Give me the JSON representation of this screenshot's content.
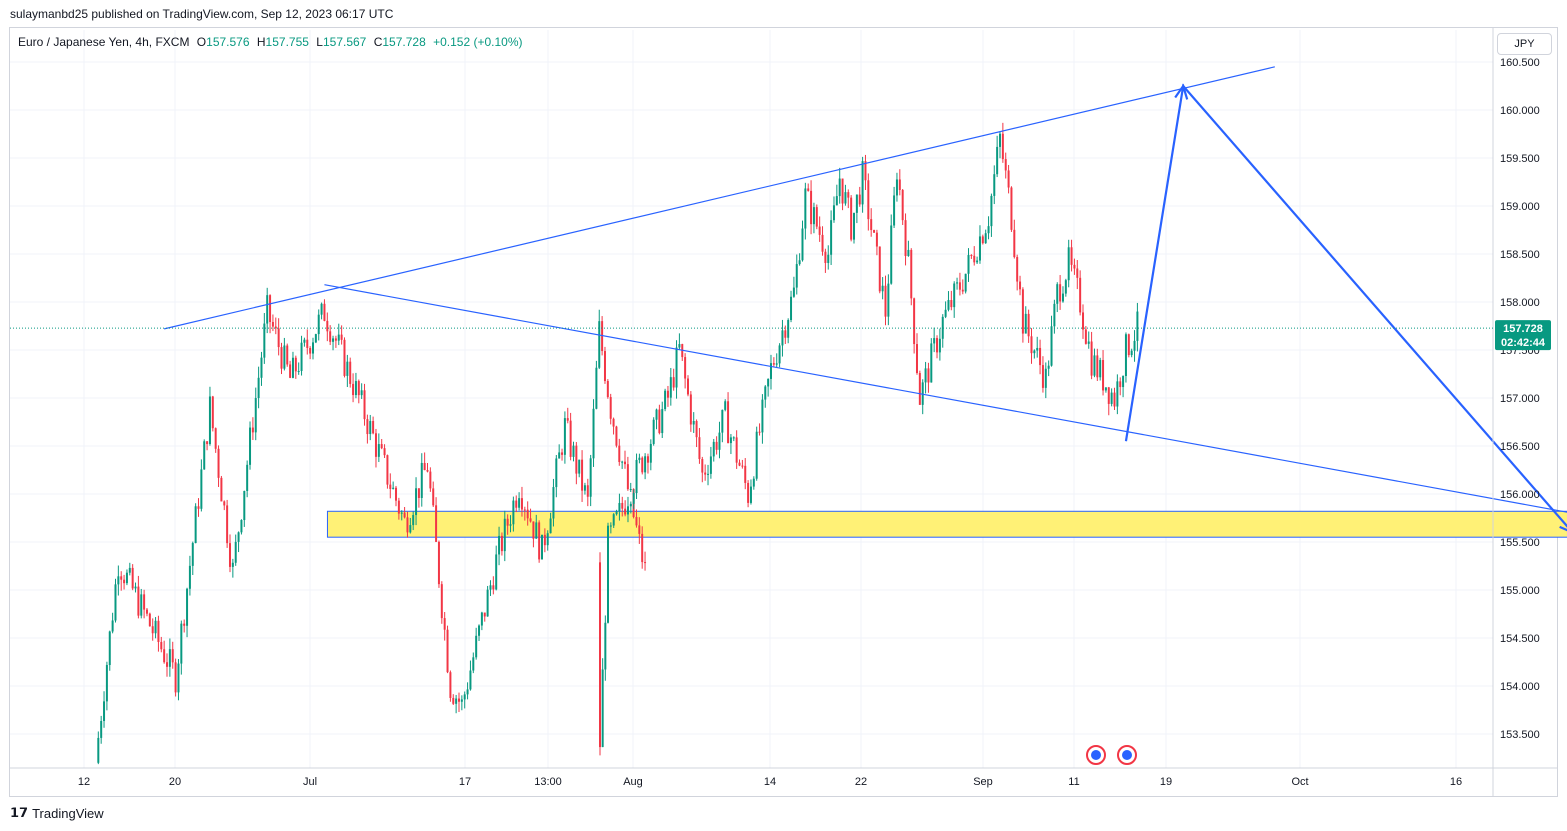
{
  "header": {
    "published_line": "sulaymanbd25 published on TradingView.com, Sep 12, 2023 06:17 UTC"
  },
  "legend": {
    "symbol": "Euro / Japanese Yen, 4h, FXCM",
    "open_label": "O",
    "open": "157.576",
    "high_label": "H",
    "high": "157.755",
    "low_label": "L",
    "low": "157.567",
    "close_label": "C",
    "close": "157.728",
    "change": "+0.152 (+0.10%)"
  },
  "currency_button": "JPY",
  "footer": {
    "brand": "TradingView",
    "logo_icon": "tradingview-logo-icon"
  },
  "colors": {
    "up": "#089981",
    "down": "#f23645",
    "trendline": "#2962ff",
    "zone_fill": "#fff176",
    "zone_border": "#2962ff",
    "price_badge": "#089981",
    "price_line": "#089981"
  },
  "chart_data": {
    "type": "candlestick",
    "title": "Euro / Japanese Yen, 4h, FXCM",
    "ylim": [
      153.2,
      160.5
    ],
    "y_ticks": [
      "160.500",
      "160.000",
      "159.500",
      "159.000",
      "158.500",
      "158.000",
      "157.500",
      "157.000",
      "156.500",
      "156.000",
      "155.500",
      "155.000",
      "154.500",
      "154.000",
      "153.500"
    ],
    "x_ticks": [
      "12",
      "20",
      "Jul",
      "17",
      "13:00",
      "Aug",
      "14",
      "22",
      "Sep",
      "11",
      "19",
      "Oct",
      "16"
    ],
    "grid": true,
    "current_price": "157.728",
    "countdown": "02:42:44",
    "swing_path": [
      {
        "date": "Jun 13",
        "price": 153.2
      },
      {
        "date": "Jun 15",
        "price": 155.3
      },
      {
        "date": "Jun 20",
        "price": 154.1
      },
      {
        "date": "Jun 23",
        "price": 156.9
      },
      {
        "date": "Jun 25",
        "price": 155.2
      },
      {
        "date": "Jun 28",
        "price": 157.9
      },
      {
        "date": "Jun 30",
        "price": 157.2
      },
      {
        "date": "Jul 3",
        "price": 157.9
      },
      {
        "date": "Jul 6",
        "price": 157.0
      },
      {
        "date": "Jul 10",
        "price": 155.7
      },
      {
        "date": "Jul 12",
        "price": 156.3
      },
      {
        "date": "Jul 14",
        "price": 154.0
      },
      {
        "date": "Jul 15",
        "price": 153.8
      },
      {
        "date": "Jul 18",
        "price": 155.3
      },
      {
        "date": "Jul 20",
        "price": 156.1
      },
      {
        "date": "Jul 22",
        "price": 155.4
      },
      {
        "date": "Jul 24",
        "price": 156.7
      },
      {
        "date": "Jul 26",
        "price": 155.9
      },
      {
        "date": "Jul 27",
        "price": 157.7
      },
      {
        "date": "Jul 28",
        "price": 156.9
      },
      {
        "date": "Jul 31",
        "price": 155.2
      },
      {
        "date": "Aug 1",
        "price": 153.4
      },
      {
        "date": "Aug 1b",
        "price": 155.5
      },
      {
        "date": "Aug 2",
        "price": 157.0
      },
      {
        "date": "Aug 3",
        "price": 157.5
      },
      {
        "date": "Aug 5",
        "price": 156.2
      },
      {
        "date": "Aug 7",
        "price": 156.8
      },
      {
        "date": "Aug 9",
        "price": 156.0
      },
      {
        "date": "Aug 11",
        "price": 157.3
      },
      {
        "date": "Aug 13",
        "price": 158.1
      },
      {
        "date": "Aug 14",
        "price": 159.1
      },
      {
        "date": "Aug 16",
        "price": 158.5
      },
      {
        "date": "Aug 17",
        "price": 159.3
      },
      {
        "date": "Aug 18",
        "price": 158.8
      },
      {
        "date": "Aug 19",
        "price": 159.3
      },
      {
        "date": "Aug 21",
        "price": 157.9
      },
      {
        "date": "Aug 22",
        "price": 159.4
      },
      {
        "date": "Aug 23",
        "price": 158.4
      },
      {
        "date": "Aug 24",
        "price": 157.0
      },
      {
        "date": "Aug 26",
        "price": 157.8
      },
      {
        "date": "Aug 28",
        "price": 158.3
      },
      {
        "date": "Aug 30",
        "price": 158.9
      },
      {
        "date": "Aug 31",
        "price": 159.7
      },
      {
        "date": "Sep 1",
        "price": 158.9
      },
      {
        "date": "Sep 2",
        "price": 157.8
      },
      {
        "date": "Sep 4",
        "price": 157.2
      },
      {
        "date": "Sep 5",
        "price": 158.1
      },
      {
        "date": "Sep 6",
        "price": 158.4
      },
      {
        "date": "Sep 7",
        "price": 158.0
      },
      {
        "date": "Sep 8",
        "price": 157.4
      },
      {
        "date": "Sep 10",
        "price": 157.0
      },
      {
        "date": "Sep 11",
        "price": 157.5
      },
      {
        "date": "Sep 12",
        "price": 157.73
      }
    ],
    "annotations": {
      "upper_trendline": {
        "from": {
          "date": "Jun 19",
          "price": 157.72
        },
        "to": {
          "date": "Sep 24",
          "price": 160.45
        }
      },
      "lower_trendline": {
        "from": {
          "date": "Jul 3",
          "price": 158.18
        },
        "to": {
          "date": "Oct 20",
          "price": 155.8
        }
      },
      "support_zone": {
        "from_date": "Jul 3",
        "to_date": "Oct 20",
        "price_high": 155.82,
        "price_low": 155.55
      },
      "projection_arrow": [
        {
          "date": "Sep 11",
          "price": 156.55
        },
        {
          "date": "Sep 16",
          "price": 160.25
        },
        {
          "date": "Oct 20",
          "price": 155.6
        }
      ]
    }
  }
}
